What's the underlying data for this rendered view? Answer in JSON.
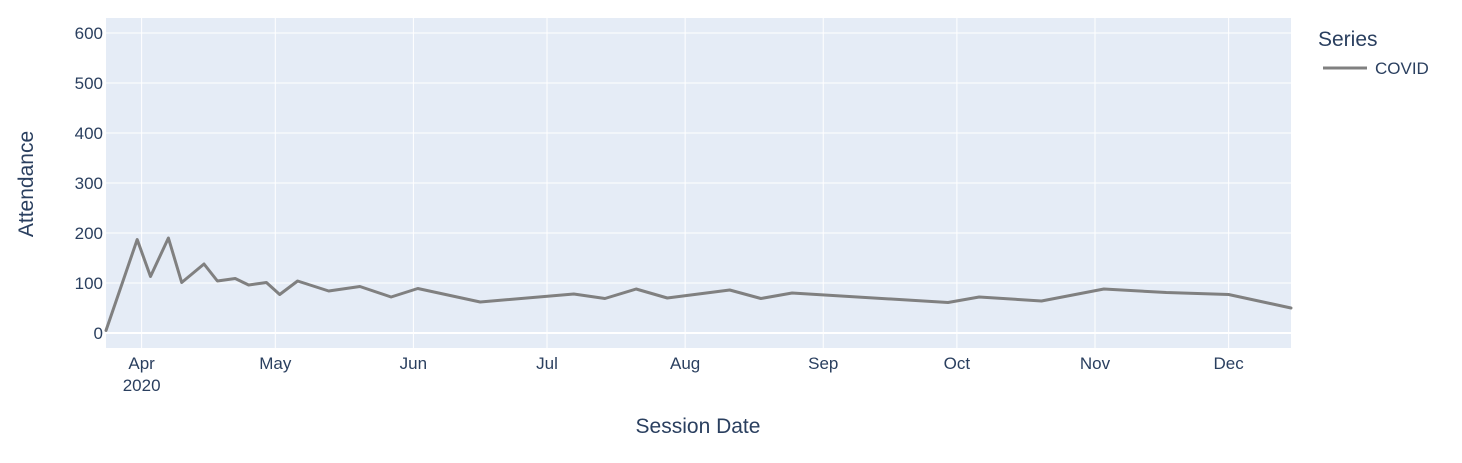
{
  "chart_data": {
    "type": "line",
    "title": "",
    "xlabel": "Session Date",
    "ylabel": "Attendance",
    "legend_title": "Series",
    "legend_position": "right",
    "grid": true,
    "x_range": [
      "2020-03-24",
      "2020-12-15"
    ],
    "ylim": [
      -30,
      630
    ],
    "y_ticks": [
      0,
      100,
      200,
      300,
      400,
      500,
      600
    ],
    "x_ticks": [
      {
        "date": "2020-04-01",
        "label": "Apr",
        "sublabel": "2020"
      },
      {
        "date": "2020-05-01",
        "label": "May",
        "sublabel": ""
      },
      {
        "date": "2020-06-01",
        "label": "Jun",
        "sublabel": ""
      },
      {
        "date": "2020-07-01",
        "label": "Jul",
        "sublabel": ""
      },
      {
        "date": "2020-08-01",
        "label": "Aug",
        "sublabel": ""
      },
      {
        "date": "2020-09-01",
        "label": "Sep",
        "sublabel": ""
      },
      {
        "date": "2020-10-01",
        "label": "Oct",
        "sublabel": ""
      },
      {
        "date": "2020-11-01",
        "label": "Nov",
        "sublabel": ""
      },
      {
        "date": "2020-12-01",
        "label": "Dec",
        "sublabel": ""
      }
    ],
    "series": [
      {
        "name": "COVID",
        "color": "#808080",
        "points": [
          {
            "x": "2020-03-24",
            "y": 5
          },
          {
            "x": "2020-03-31",
            "y": 187
          },
          {
            "x": "2020-04-03",
            "y": 113
          },
          {
            "x": "2020-04-07",
            "y": 190
          },
          {
            "x": "2020-04-10",
            "y": 101
          },
          {
            "x": "2020-04-15",
            "y": 138
          },
          {
            "x": "2020-04-18",
            "y": 104
          },
          {
            "x": "2020-04-22",
            "y": 109
          },
          {
            "x": "2020-04-25",
            "y": 96
          },
          {
            "x": "2020-04-29",
            "y": 101
          },
          {
            "x": "2020-05-02",
            "y": 77
          },
          {
            "x": "2020-05-06",
            "y": 104
          },
          {
            "x": "2020-05-13",
            "y": 84
          },
          {
            "x": "2020-05-20",
            "y": 93
          },
          {
            "x": "2020-05-27",
            "y": 72
          },
          {
            "x": "2020-06-02",
            "y": 89
          },
          {
            "x": "2020-06-16",
            "y": 62
          },
          {
            "x": "2020-07-07",
            "y": 78
          },
          {
            "x": "2020-07-14",
            "y": 69
          },
          {
            "x": "2020-07-21",
            "y": 88
          },
          {
            "x": "2020-07-28",
            "y": 70
          },
          {
            "x": "2020-08-11",
            "y": 86
          },
          {
            "x": "2020-08-18",
            "y": 69
          },
          {
            "x": "2020-08-25",
            "y": 80
          },
          {
            "x": "2020-09-29",
            "y": 61
          },
          {
            "x": "2020-10-06",
            "y": 72
          },
          {
            "x": "2020-10-20",
            "y": 64
          },
          {
            "x": "2020-11-03",
            "y": 88
          },
          {
            "x": "2020-11-17",
            "y": 81
          },
          {
            "x": "2020-12-01",
            "y": 77
          },
          {
            "x": "2020-12-15",
            "y": 50
          }
        ]
      }
    ]
  }
}
